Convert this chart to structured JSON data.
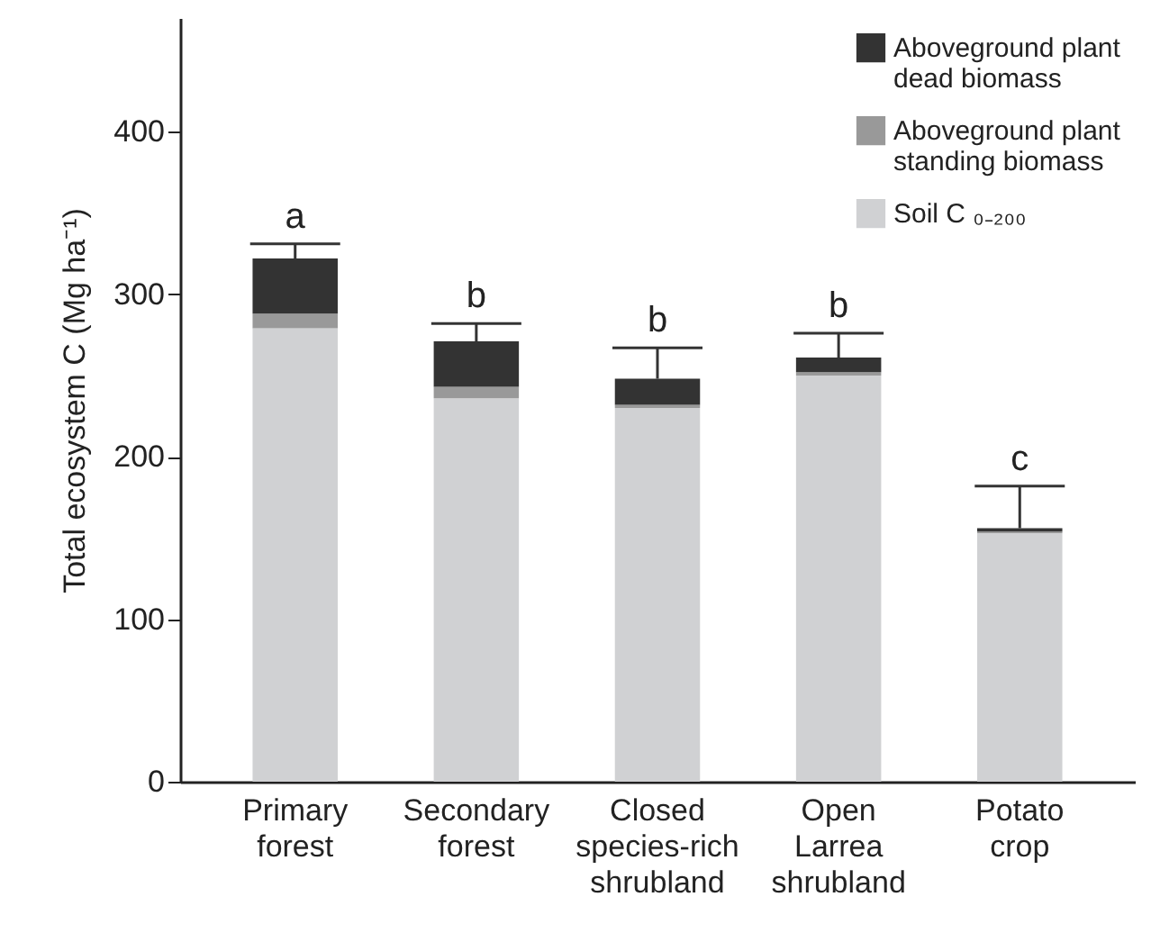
{
  "chart_data": {
    "type": "bar",
    "stacked": true,
    "ylabel": "Total ecosystem C (Mg ha⁻¹)",
    "categories": [
      "Primary forest",
      "Secondary forest",
      "Closed species-rich shrubland",
      "Open Larrea shrubland",
      "Potato crop"
    ],
    "series": [
      {
        "name": "Soil C ₀₋₂₀₀",
        "color": "#d0d1d3",
        "values": [
          279,
          236,
          230,
          250,
          153
        ]
      },
      {
        "name": "Aboveground plant standing biomass",
        "color": "#999999",
        "values": [
          9,
          7,
          2,
          2,
          1
        ]
      },
      {
        "name": "Aboveground plant dead biomass",
        "color": "#333333",
        "values": [
          34,
          28,
          16,
          9,
          2
        ],
        "errors": [
          [
            322,
            331
          ],
          [
            271,
            282
          ],
          [
            248,
            267
          ],
          [
            261,
            276
          ],
          [
            156,
            182
          ]
        ]
      }
    ],
    "annotations": [
      "a",
      "b",
      "b",
      "b",
      "c"
    ],
    "ylim": [
      0,
      470
    ],
    "yticks": [
      0,
      100,
      200,
      300,
      400
    ],
    "grid": false,
    "legend": "top right"
  }
}
